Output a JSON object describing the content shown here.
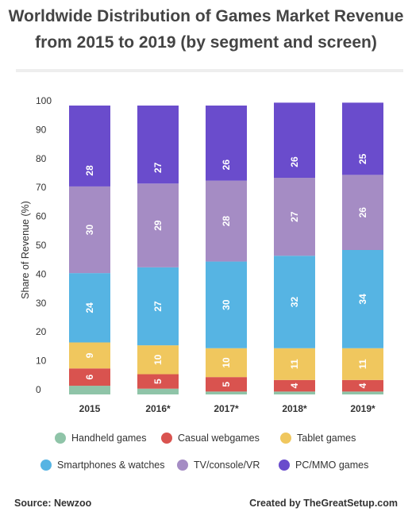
{
  "title_line1": "Worldwide Distribution of Games Market Revenue",
  "title_line2": "from 2015 to 2019 (by segment and screen)",
  "footer": {
    "source": "Source: Newzoo",
    "credit": "Created by TheGreatSetup.com"
  },
  "chart_data": {
    "type": "bar",
    "stacked": true,
    "categories": [
      "2015",
      "2016*",
      "2017*",
      "2018*",
      "2019*"
    ],
    "ylabel": "Share of Revenue (%)",
    "xlabel": "",
    "ylim": [
      0,
      100
    ],
    "yticks": [
      0,
      10,
      20,
      30,
      40,
      50,
      60,
      70,
      80,
      90,
      100
    ],
    "grid": false,
    "legend_position": "bottom",
    "series": [
      {
        "name": "Handheld games",
        "color": "#8fc4a8",
        "values": [
          3,
          2,
          1,
          1,
          1
        ],
        "labels": [
          "",
          "",
          "",
          "",
          ""
        ]
      },
      {
        "name": "Casual webgames",
        "color": "#d9534f",
        "values": [
          6,
          5,
          5,
          4,
          4
        ],
        "labels": [
          "6",
          "5",
          "5",
          "4",
          "4"
        ]
      },
      {
        "name": "Tablet games",
        "color": "#f0c75e",
        "values": [
          9,
          10,
          10,
          11,
          11
        ],
        "labels": [
          "9",
          "10",
          "10",
          "11",
          "11"
        ]
      },
      {
        "name": "Smartphones & watches",
        "color": "#56b4e3",
        "values": [
          24,
          27,
          30,
          32,
          34
        ],
        "labels": [
          "24",
          "27",
          "30",
          "32",
          "34"
        ]
      },
      {
        "name": "TV/console/VR",
        "color": "#a58cc4",
        "values": [
          30,
          29,
          28,
          27,
          26
        ],
        "labels": [
          "30",
          "29",
          "28",
          "27",
          "26"
        ]
      },
      {
        "name": "PC/MMO games",
        "color": "#6a4ccc",
        "values": [
          28,
          27,
          26,
          26,
          25
        ],
        "labels": [
          "28",
          "27",
          "26",
          "26",
          "25"
        ]
      }
    ]
  }
}
